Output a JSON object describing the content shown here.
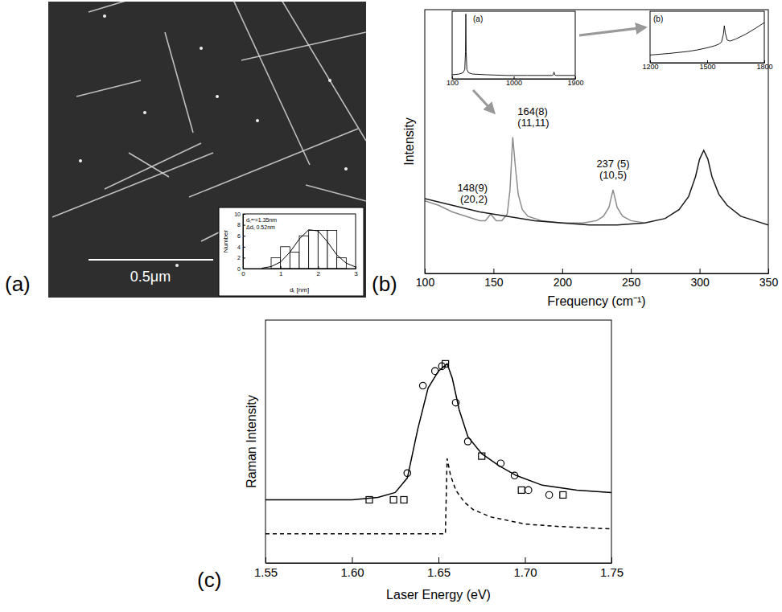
{
  "chart_data": [
    {
      "type": "histogram",
      "panel": "(a)",
      "scale_bar": "0.5μm",
      "texts": [
        "dₜᵃᵛ=1.35nm",
        "Δdₜ 0.52nm"
      ],
      "x_label": "dₜ [nm]",
      "y_label": "Number",
      "bins": [
        0.75,
        1.0,
        1.25,
        1.5,
        1.75,
        2.0,
        2.25,
        2.5,
        2.75
      ],
      "values": [
        2,
        4,
        3,
        6,
        7,
        7,
        7,
        2
      ],
      "color": "#ffffff",
      "xlim": [
        0,
        3
      ],
      "xticks": [
        0,
        1,
        2,
        3
      ],
      "ylim": [
        0,
        10
      ],
      "yticks": [
        0,
        2,
        4,
        6,
        8,
        10
      ],
      "series": [
        {
          "type": "line",
          "color": "#000000",
          "x": [
            0.5,
            0.75,
            1.0,
            1.25,
            1.5,
            1.75,
            2.0,
            2.25,
            2.5,
            2.75,
            3.0
          ],
          "values": [
            0.08,
            0.37,
            1.2,
            3.0,
            5.4,
            7.1,
            6.9,
            4.9,
            2.5,
            1.0,
            0.28
          ]
        }
      ]
    },
    {
      "type": "line",
      "panel": "(b)",
      "x_label": "Frequency (cm⁻¹)",
      "y_label": "Intensity",
      "xlim": [
        100,
        350
      ],
      "xticks": [
        100,
        150,
        200,
        250,
        300,
        350
      ],
      "ylim": [
        0,
        120
      ],
      "tick_labels": "x",
      "series": [
        {
          "color": "#8c8c8c",
          "x": [
            100,
            110,
            120,
            130,
            140,
            144,
            148,
            152,
            156,
            160,
            162,
            164,
            166,
            168,
            171,
            175,
            185,
            200,
            215,
            225,
            230,
            234,
            237,
            240,
            244,
            250,
            260
          ],
          "values": [
            33,
            31,
            28,
            26,
            24,
            24,
            27,
            24,
            24,
            27,
            38,
            62,
            48,
            36,
            29,
            26,
            24,
            23,
            23,
            24,
            26,
            30,
            38,
            30,
            26,
            24,
            23
          ]
        },
        {
          "color": "#1a1a1a",
          "x": [
            100,
            120,
            140,
            160,
            180,
            200,
            220,
            240,
            260,
            275,
            285,
            292,
            297,
            300,
            303,
            306,
            309,
            314,
            320,
            330,
            340,
            350
          ],
          "values": [
            34,
            31,
            28,
            26,
            24,
            23,
            22,
            22,
            23,
            25,
            29,
            35,
            44,
            52,
            56,
            52,
            44,
            36,
            31,
            26,
            24,
            22
          ]
        }
      ],
      "annotations": [
        {
          "text": [
            "148(9)",
            "(20,2)"
          ],
          "x": 148
        },
        {
          "text": [
            "164(8)",
            "(11,11)"
          ],
          "x": 164
        },
        {
          "text": [
            "237 (5)",
            "(10,5)"
          ],
          "x": 237
        }
      ]
    },
    {
      "type": "line",
      "title": "(a)",
      "xlim": [
        100,
        1900
      ],
      "xticks": [
        100,
        1000,
        1900
      ],
      "ylim": [
        0,
        100
      ],
      "tick_labels": "x",
      "series": [
        {
          "color": "#1a1a1a",
          "x": [
            100,
            200,
            260,
            285,
            295,
            300,
            305,
            315,
            340,
            400,
            600,
            900,
            1000,
            1200,
            1500,
            1560,
            1580,
            1590,
            1600,
            1620,
            1700,
            1900
          ],
          "values": [
            6,
            7,
            9,
            14,
            40,
            96,
            40,
            14,
            9,
            7,
            6,
            5,
            5,
            5,
            5,
            5,
            6,
            10,
            6,
            5,
            5,
            5
          ]
        }
      ]
    },
    {
      "type": "line",
      "title": "(b)",
      "xlim": [
        1200,
        1800
      ],
      "xticks": [
        1200,
        1500,
        1800
      ],
      "ylim": [
        0,
        100
      ],
      "tick_labels": "x",
      "series": [
        {
          "color": "#1a1a1a",
          "x": [
            1200,
            1300,
            1400,
            1450,
            1500,
            1540,
            1560,
            1575,
            1585,
            1590,
            1595,
            1605,
            1620,
            1650,
            1700,
            1750,
            1800
          ],
          "values": [
            15,
            18,
            22,
            25,
            29,
            33,
            36,
            40,
            55,
            72,
            58,
            44,
            42,
            46,
            55,
            66,
            78
          ]
        }
      ]
    },
    {
      "type": "scatter",
      "panel": "(c)",
      "x_label": "Laser Energy (eV)",
      "y_label": "Raman Intensity",
      "xlim": [
        1.55,
        1.75
      ],
      "xticks": [
        1.55,
        {
          "value": 1.6,
          "label": "1.60"
        },
        1.65,
        {
          "value": 1.7,
          "label": "1.70"
        },
        1.75
      ],
      "ylim": [
        0,
        100
      ],
      "tick_labels": "x",
      "series": [
        {
          "type": "scatter",
          "marker": "circle",
          "color": "#000000",
          "x": [
            1.632,
            1.641,
            1.648,
            1.652,
            1.66,
            1.667,
            1.686,
            1.694,
            1.702,
            1.714
          ],
          "values": [
            37,
            73,
            79,
            81,
            66,
            50,
            41,
            36,
            30,
            28
          ]
        },
        {
          "type": "scatter",
          "marker": "square",
          "color": "#000000",
          "x": [
            1.61,
            1.624,
            1.63,
            1.654,
            1.675,
            1.698,
            1.722
          ],
          "values": [
            26,
            26,
            26,
            82,
            44,
            30,
            28
          ]
        },
        {
          "type": "line",
          "line_style": "solid",
          "color": "#000000",
          "x": [
            1.55,
            1.6,
            1.615,
            1.625,
            1.632,
            1.638,
            1.644,
            1.65,
            1.655,
            1.658,
            1.662,
            1.667,
            1.675,
            1.685,
            1.695,
            1.71,
            1.73,
            1.75
          ],
          "values": [
            26,
            26,
            27,
            29,
            35,
            55,
            72,
            79,
            82,
            76,
            63,
            52,
            45,
            40,
            36,
            32,
            30,
            29
          ]
        },
        {
          "type": "line",
          "line_style": "dashed",
          "color": "#000000",
          "x": [
            1.55,
            1.6,
            1.654,
            1.655,
            1.657,
            1.66,
            1.665,
            1.67,
            1.68,
            1.7,
            1.72,
            1.75
          ],
          "values": [
            12,
            12,
            12,
            43,
            36,
            30,
            25,
            22,
            19,
            16,
            15,
            14
          ]
        }
      ]
    }
  ]
}
